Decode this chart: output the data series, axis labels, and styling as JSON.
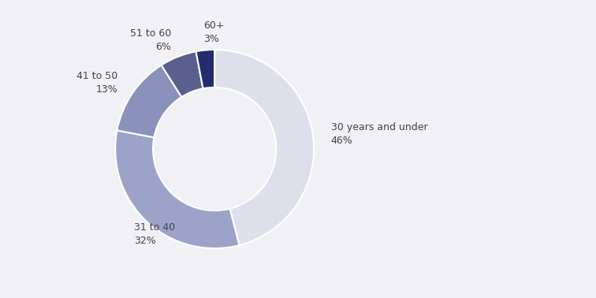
{
  "labels": [
    "30 years and under",
    "31 to 40",
    "41 to 50",
    "51 to 60",
    "60+"
  ],
  "values": [
    46,
    32,
    13,
    6,
    3
  ],
  "colors": [
    "#dde0ea",
    "#9da3c8",
    "#8a92bb",
    "#5a5f8e",
    "#252c6e"
  ],
  "background_color": "#f0f0f5",
  "donut_width": 0.38,
  "figsize": [
    7.56,
    3.78
  ],
  "dpi": 100,
  "startangle": 90,
  "font_size": 9,
  "label_color": "#444444",
  "edge_color": "#ffffff",
  "label_data": [
    {
      "text": "30 years and under\n46%",
      "ha": "left",
      "va": "center"
    },
    {
      "text": "31 to 40\n32%",
      "ha": "left",
      "va": "center"
    },
    {
      "text": "41 to 50\n13%",
      "ha": "right",
      "va": "center"
    },
    {
      "text": "51 to 60\n6%",
      "ha": "right",
      "va": "center"
    },
    {
      "text": "60+\n3%",
      "ha": "left",
      "va": "center"
    }
  ]
}
